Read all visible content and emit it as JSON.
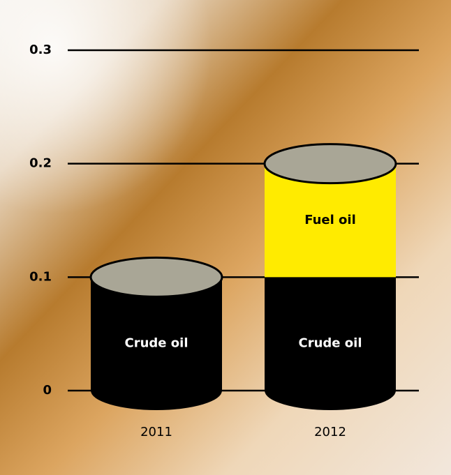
{
  "chart_data": {
    "type": "stacked-bar",
    "categories": [
      "2011",
      "2012"
    ],
    "series": [
      {
        "name": "Crude oil",
        "color": "#000000",
        "values": [
          0.1,
          0.1
        ]
      },
      {
        "name": "Fuel oil",
        "color": "#ffeb00",
        "values": [
          null,
          0.1
        ]
      }
    ],
    "ylim": [
      0,
      0.3
    ],
    "yticks": [
      0,
      0.1,
      0.2,
      0.3
    ],
    "grid": true
  }
}
